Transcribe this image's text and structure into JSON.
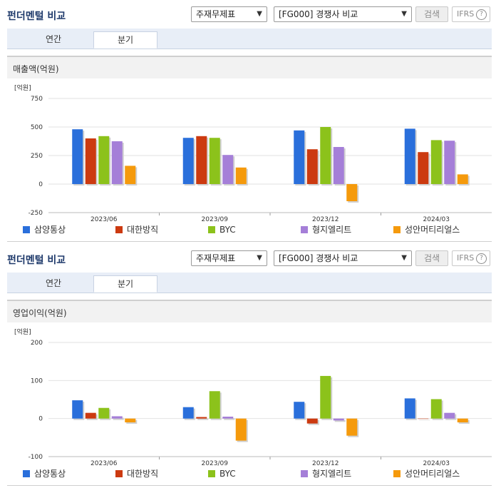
{
  "panels": [
    {
      "title": "펀더멘털 비교",
      "select1": "주재무제표",
      "select2": "[FG000] 경쟁사 비교",
      "search_label": "검색",
      "ifrs_label": "IFRS",
      "help_glyph": "?",
      "tabs": [
        "연간",
        "분기"
      ],
      "active_tab": "분기",
      "chart_title": "매출액(억원)"
    },
    {
      "title": "펀더멘털 비교",
      "select1": "주재무제표",
      "select2": "[FG000] 경쟁사 비교",
      "search_label": "검색",
      "ifrs_label": "IFRS",
      "help_glyph": "?",
      "tabs": [
        "연간",
        "분기"
      ],
      "active_tab": "분기",
      "chart_title": "영업이익(억원)"
    }
  ],
  "chart_data": [
    {
      "type": "bar",
      "title": "매출액(억원)",
      "unit_label": "[억원]",
      "categories": [
        "2023/06",
        "2023/09",
        "2023/12",
        "2024/03"
      ],
      "ylim": [
        -250,
        750
      ],
      "yticks": [
        750,
        500,
        250,
        0,
        -250
      ],
      "grid": true,
      "legend_position": "bottom",
      "series": [
        {
          "name": "삼양통상",
          "color": "#2a6fdb",
          "values": [
            480,
            405,
            470,
            485
          ]
        },
        {
          "name": "대한방직",
          "color": "#cc3a10",
          "values": [
            400,
            420,
            305,
            280
          ]
        },
        {
          "name": "BYC",
          "color": "#8cc21b",
          "values": [
            420,
            405,
            500,
            385
          ]
        },
        {
          "name": "형지엘리트",
          "color": "#a57fd8",
          "values": [
            375,
            255,
            325,
            380
          ]
        },
        {
          "name": "성안머티리얼스",
          "color": "#f59a0c",
          "values": [
            160,
            145,
            -150,
            85
          ]
        }
      ]
    },
    {
      "type": "bar",
      "title": "영업이익(억원)",
      "unit_label": "[억원]",
      "categories": [
        "2023/06",
        "2023/09",
        "2023/12",
        "2024/03"
      ],
      "ylim": [
        -100,
        200
      ],
      "yticks": [
        200,
        100,
        0,
        -100
      ],
      "grid": true,
      "legend_position": "bottom",
      "series": [
        {
          "name": "삼양통상",
          "color": "#2a6fdb",
          "values": [
            48,
            30,
            44,
            53
          ]
        },
        {
          "name": "대한방직",
          "color": "#cc3a10",
          "values": [
            15,
            4,
            -13,
            0
          ]
        },
        {
          "name": "BYC",
          "color": "#8cc21b",
          "values": [
            28,
            72,
            112,
            51
          ]
        },
        {
          "name": "형지엘리트",
          "color": "#a57fd8",
          "values": [
            6,
            5,
            -5,
            15
          ]
        },
        {
          "name": "성안머티리얼스",
          "color": "#f59a0c",
          "values": [
            -10,
            -58,
            -45,
            -10
          ]
        }
      ]
    }
  ]
}
